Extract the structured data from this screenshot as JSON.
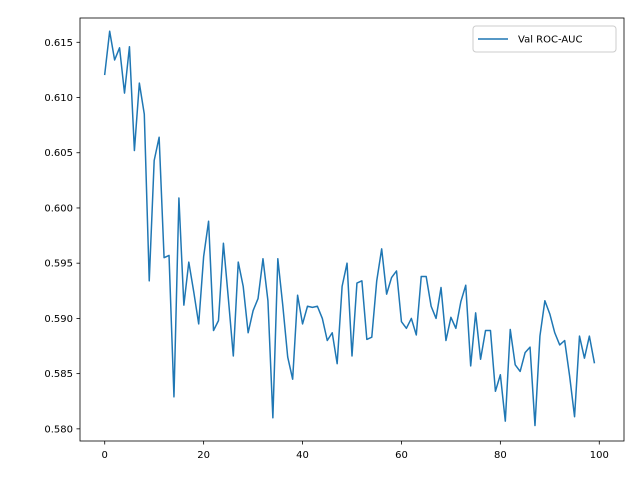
{
  "chart_data": {
    "type": "line",
    "title": "",
    "xlabel": "",
    "ylabel": "",
    "xlim": [
      -5,
      105
    ],
    "ylim": [
      0.5789,
      0.6172
    ],
    "xticks": [
      0,
      20,
      40,
      60,
      80,
      100
    ],
    "yticks": [
      0.58,
      0.585,
      0.59,
      0.595,
      0.6,
      0.605,
      0.61,
      0.615
    ],
    "grid": false,
    "legend_position": "top-right",
    "series": [
      {
        "name": "Val ROC-AUC",
        "color": "#1f77b4",
        "x": [
          0,
          1,
          2,
          3,
          4,
          5,
          6,
          7,
          8,
          9,
          10,
          11,
          12,
          13,
          14,
          15,
          16,
          17,
          18,
          19,
          20,
          21,
          22,
          23,
          24,
          25,
          26,
          27,
          28,
          29,
          30,
          31,
          32,
          33,
          34,
          35,
          36,
          37,
          38,
          39,
          40,
          41,
          42,
          43,
          44,
          45,
          46,
          47,
          48,
          49,
          50,
          51,
          52,
          53,
          54,
          55,
          56,
          57,
          58,
          59,
          60,
          61,
          62,
          63,
          64,
          65,
          66,
          67,
          68,
          69,
          70,
          71,
          72,
          73,
          74,
          75,
          76,
          77,
          78,
          79,
          80,
          81,
          82,
          83,
          84,
          85,
          86,
          87,
          88,
          89,
          90,
          91,
          92,
          93,
          94,
          95,
          96,
          97,
          98,
          99
        ],
        "y": [
          0.6121,
          0.616,
          0.6134,
          0.6145,
          0.6104,
          0.6146,
          0.6052,
          0.6113,
          0.6085,
          0.5934,
          0.6043,
          0.6064,
          0.5955,
          0.5957,
          0.5829,
          0.6009,
          0.5912,
          0.5951,
          0.5924,
          0.5895,
          0.5956,
          0.5988,
          0.5889,
          0.5898,
          0.5968,
          0.5918,
          0.5866,
          0.5951,
          0.5929,
          0.5887,
          0.5907,
          0.5918,
          0.5954,
          0.5916,
          0.581,
          0.5954,
          0.5912,
          0.5865,
          0.5845,
          0.5921,
          0.5895,
          0.5911,
          0.591,
          0.5911,
          0.59,
          0.588,
          0.5887,
          0.5859,
          0.5929,
          0.595,
          0.5866,
          0.5932,
          0.5934,
          0.5881,
          0.5883,
          0.5934,
          0.5963,
          0.5922,
          0.5937,
          0.5943,
          0.5897,
          0.5891,
          0.59,
          0.5885,
          0.5938,
          0.5938,
          0.5911,
          0.59,
          0.5928,
          0.588,
          0.5901,
          0.5891,
          0.5915,
          0.593,
          0.5857,
          0.5905,
          0.5863,
          0.5889,
          0.5889,
          0.5834,
          0.5849,
          0.5807,
          0.589,
          0.5858,
          0.5852,
          0.5869,
          0.5874,
          0.5803,
          0.5884,
          0.5916,
          0.5904,
          0.5887,
          0.5876,
          0.588,
          0.5848,
          0.5811,
          0.5884,
          0.5864,
          0.5884,
          0.586
        ]
      }
    ]
  }
}
